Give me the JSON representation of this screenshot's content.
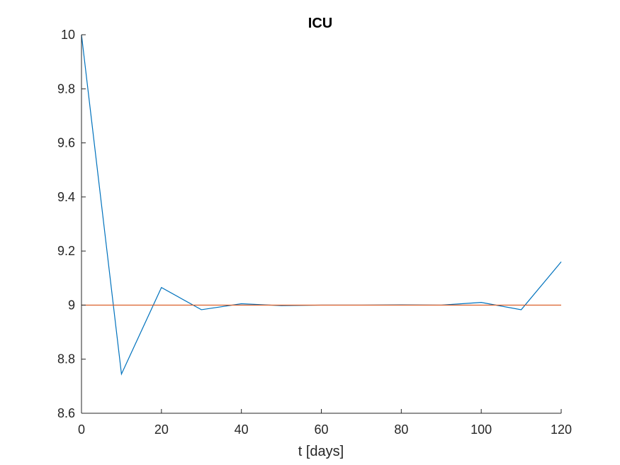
{
  "chart_data": {
    "type": "line",
    "title": "ICU",
    "xlabel": "t [days]",
    "ylabel": "",
    "xlim": [
      0,
      120
    ],
    "ylim": [
      8.6,
      10
    ],
    "xticks": [
      0,
      20,
      40,
      60,
      80,
      100,
      120
    ],
    "yticks": [
      8.6,
      8.8,
      9,
      9.2,
      9.4,
      9.6,
      9.8,
      10
    ],
    "xtick_labels": [
      "0",
      "20",
      "40",
      "60",
      "80",
      "100",
      "120"
    ],
    "ytick_labels": [
      "8.6",
      "8.8",
      "9",
      "9.2",
      "9.4",
      "9.6",
      "9.8",
      "10"
    ],
    "grid": false,
    "series": [
      {
        "color": "#0072BD",
        "x": [
          0,
          10,
          20,
          30,
          40,
          50,
          60,
          70,
          80,
          90,
          100,
          110,
          120
        ],
        "y": [
          10,
          8.745,
          9.065,
          8.983,
          9.005,
          8.998,
          9.0,
          9.0,
          9.001,
          9.0,
          9.01,
          8.983,
          9.16
        ]
      },
      {
        "color": "#D95319",
        "x": [
          0,
          120
        ],
        "y": [
          9,
          9
        ]
      }
    ]
  }
}
